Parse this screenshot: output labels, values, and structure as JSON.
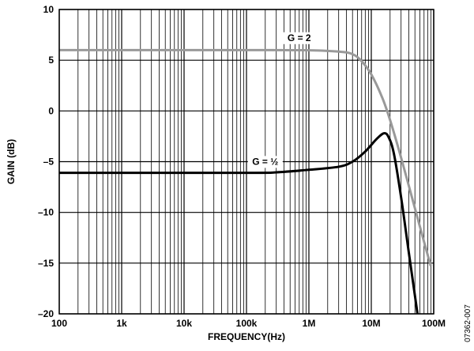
{
  "chart_data": {
    "type": "line",
    "xlabel": "FREQUENCY(Hz)",
    "ylabel": "GAIN (dB)",
    "x_scale": "log",
    "xlim": [
      100,
      100000000
    ],
    "ylim": [
      -20,
      10
    ],
    "x_ticks": [
      {
        "value": 100,
        "label": "100"
      },
      {
        "value": 1000,
        "label": "1k"
      },
      {
        "value": 10000,
        "label": "10k"
      },
      {
        "value": 100000,
        "label": "100k"
      },
      {
        "value": 1000000,
        "label": "1M"
      },
      {
        "value": 10000000,
        "label": "10M"
      },
      {
        "value": 100000000,
        "label": "100M"
      }
    ],
    "y_ticks": [
      {
        "value": 10,
        "label": "10"
      },
      {
        "value": 5,
        "label": "5"
      },
      {
        "value": 0,
        "label": "0"
      },
      {
        "value": -5,
        "label": "–5"
      },
      {
        "value": -10,
        "label": "–10"
      },
      {
        "value": -15,
        "label": "–15"
      },
      {
        "value": -20,
        "label": "–20"
      }
    ],
    "grid": true,
    "series": [
      {
        "name": "G = 2",
        "color": "#999999",
        "points": [
          [
            100,
            6.0
          ],
          [
            100000,
            6.0
          ],
          [
            1000000,
            5.98
          ],
          [
            3000000,
            5.85
          ],
          [
            5000000,
            5.6
          ],
          [
            7000000,
            4.9
          ],
          [
            10000000,
            3.6
          ],
          [
            15000000,
            1.3
          ],
          [
            20000000,
            -0.9
          ],
          [
            30000000,
            -4.6
          ],
          [
            50000000,
            -9.6
          ],
          [
            70000000,
            -12.9
          ],
          [
            90000000,
            -15.3
          ]
        ]
      },
      {
        "name": "G = ½",
        "color": "#000000",
        "points": [
          [
            100,
            -6.1
          ],
          [
            100000,
            -6.1
          ],
          [
            300000,
            -6.05
          ],
          [
            1000000,
            -5.8
          ],
          [
            3000000,
            -5.5
          ],
          [
            5000000,
            -5.0
          ],
          [
            8000000,
            -4.0
          ],
          [
            12000000,
            -2.8
          ],
          [
            16000000,
            -2.2
          ],
          [
            19000000,
            -2.6
          ],
          [
            23000000,
            -4.2
          ],
          [
            30000000,
            -8.5
          ],
          [
            40000000,
            -14.0
          ],
          [
            55000000,
            -20.0
          ]
        ]
      }
    ],
    "annotations": [
      {
        "text": "G = 2",
        "series": 0,
        "x": 700000,
        "y": 6.9
      },
      {
        "text": "G = ½",
        "series": 1,
        "x": 200000,
        "y": -5.3
      }
    ]
  },
  "figure_id": "07362-007"
}
